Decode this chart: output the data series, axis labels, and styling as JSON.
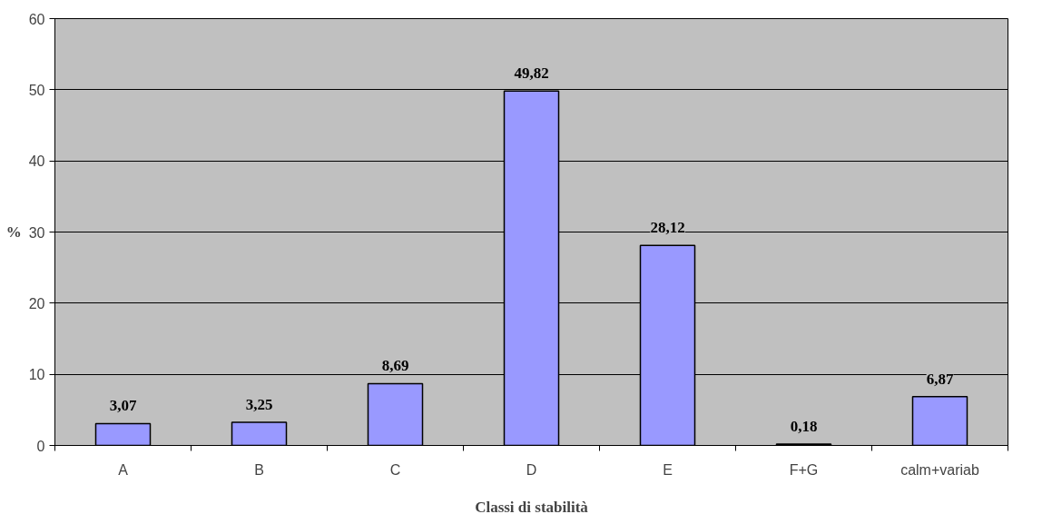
{
  "chart_data": {
    "type": "bar",
    "xlabel": "Classi di stabilità",
    "ylabel": "%",
    "categories": [
      "A",
      "B",
      "C",
      "D",
      "E",
      "F+G",
      "calm+variab"
    ],
    "values": [
      3.07,
      3.25,
      8.69,
      49.82,
      28.12,
      0.18,
      6.87
    ],
    "value_labels": [
      "3,07",
      "3,25",
      "8,69",
      "49,82",
      "28,12",
      "0,18",
      "6,87"
    ],
    "color": "#9999ff",
    "ylim": [
      0,
      60
    ],
    "yticks": [
      0,
      10,
      20,
      30,
      40,
      50,
      60
    ],
    "grid": "y"
  }
}
